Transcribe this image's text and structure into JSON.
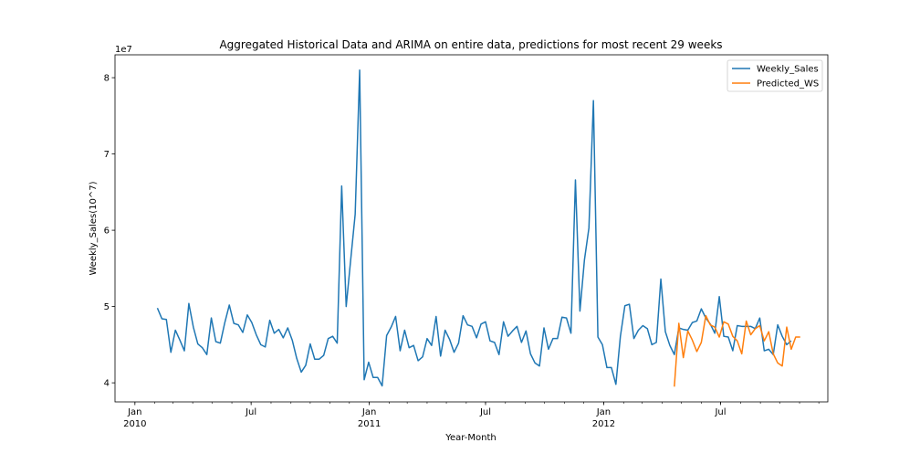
{
  "chart_data": {
    "type": "line",
    "title": "Aggregated Historical Data and ARIMA on entire data, predictions for most recent 29 weeks",
    "xlabel": "Year-Month",
    "ylabel": "Weekly_Sales(10^7)",
    "y_offset_text": "1e7",
    "y_scale_note": "values in units of 10^7",
    "xlim": [
      "2009-12-01",
      "2012-12-15"
    ],
    "ylim": [
      3.75,
      8.3
    ],
    "grid": false,
    "legend_position": "top-right",
    "x_ticks": [
      {
        "date": "2010-01-01",
        "label": "Jan",
        "year": "2010"
      },
      {
        "date": "2010-07-01",
        "label": "Jul",
        "year": ""
      },
      {
        "date": "2011-01-01",
        "label": "Jan",
        "year": "2011"
      },
      {
        "date": "2011-07-01",
        "label": "Jul",
        "year": ""
      },
      {
        "date": "2012-01-01",
        "label": "Jan",
        "year": "2012"
      },
      {
        "date": "2012-07-01",
        "label": "Jul",
        "year": ""
      }
    ],
    "y_ticks": [
      4,
      5,
      6,
      7,
      8
    ],
    "colors": {
      "Weekly_Sales": "#1f77b4",
      "Predicted_WS": "#ff7f0e"
    },
    "series": [
      {
        "name": "Weekly_Sales",
        "start_date": "2010-02-05",
        "step_days": 7,
        "values": [
          4.98,
          4.84,
          4.83,
          4.4,
          4.69,
          4.56,
          4.42,
          5.04,
          4.73,
          4.51,
          4.46,
          4.37,
          4.85,
          4.54,
          4.52,
          4.79,
          5.02,
          4.78,
          4.76,
          4.66,
          4.89,
          4.79,
          4.63,
          4.5,
          4.47,
          4.82,
          4.65,
          4.7,
          4.59,
          4.72,
          4.56,
          4.32,
          4.14,
          4.23,
          4.51,
          4.31,
          4.31,
          4.36,
          4.58,
          4.61,
          4.52,
          6.58,
          5.0,
          5.61,
          6.21,
          8.1,
          4.04,
          4.27,
          4.07,
          4.07,
          3.96,
          4.62,
          4.73,
          4.87,
          4.42,
          4.69,
          4.46,
          4.49,
          4.29,
          4.34,
          4.58,
          4.49,
          4.87,
          4.35,
          4.69,
          4.57,
          4.4,
          4.52,
          4.88,
          4.76,
          4.74,
          4.59,
          4.77,
          4.8,
          4.55,
          4.53,
          4.37,
          4.8,
          4.61,
          4.68,
          4.74,
          4.53,
          4.68,
          4.38,
          4.26,
          4.22,
          4.72,
          4.44,
          4.58,
          4.58,
          4.86,
          4.85,
          4.65,
          6.66,
          4.94,
          5.61,
          6.03,
          7.7,
          4.6,
          4.5,
          4.2,
          4.2,
          3.98,
          4.61,
          5.01,
          5.03,
          4.58,
          4.69,
          4.75,
          4.71,
          4.5,
          4.53,
          5.36,
          4.67,
          4.49,
          4.37,
          4.72,
          4.7,
          4.69,
          4.79,
          4.81,
          4.97,
          4.85,
          4.77,
          4.65,
          5.13,
          4.61,
          4.6,
          4.42,
          4.75,
          4.74,
          4.74,
          4.74,
          4.71,
          4.85,
          4.42,
          4.44,
          4.37,
          4.76,
          4.61,
          4.5,
          4.55
        ]
      },
      {
        "name": "Predicted_WS",
        "start_date": "2012-04-20",
        "step_days": 7,
        "values": [
          3.95,
          4.78,
          4.33,
          4.68,
          4.56,
          4.41,
          4.53,
          4.88,
          4.76,
          4.73,
          4.6,
          4.8,
          4.77,
          4.61,
          4.55,
          4.38,
          4.81,
          4.63,
          4.71,
          4.75,
          4.55,
          4.67,
          4.38,
          4.26,
          4.22,
          4.73,
          4.44,
          4.6,
          4.6
        ]
      }
    ]
  }
}
